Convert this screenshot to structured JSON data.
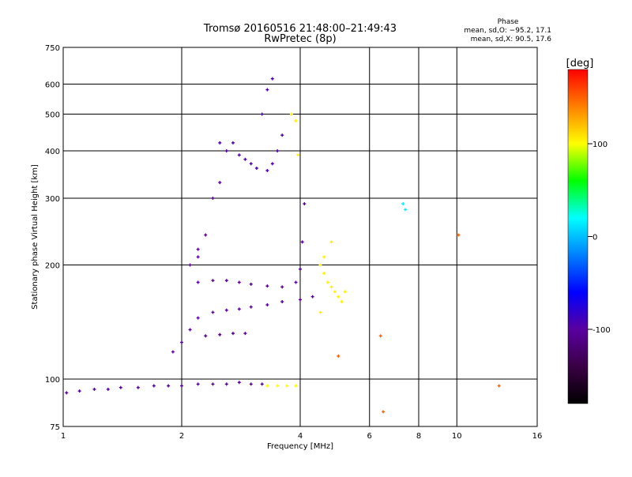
{
  "chart_data": {
    "type": "scatter",
    "title": "Tromsø 20160516 21:48:00–21:49:43",
    "subtitle": "RwPretec (8p)",
    "xlabel": "Frequency [MHz]",
    "ylabel": "Stationary phase Virtual Height [km]",
    "x_scale": "log",
    "y_scale": "log",
    "xlim": [
      1,
      16
    ],
    "ylim": [
      75,
      750
    ],
    "x_ticks": [
      1,
      2,
      4,
      6,
      8,
      10,
      16
    ],
    "y_ticks": [
      75,
      100,
      200,
      300,
      400,
      500,
      600,
      750
    ],
    "grid": true,
    "phase_header": "Phase",
    "phase_stats": [
      "mean, sd,O: −95.2, 17.1",
      "mean, sd,X:  90.5, 17.6"
    ],
    "colorbar": {
      "label": "[deg]",
      "ticks": [
        100,
        0,
        -100
      ],
      "range": [
        -180,
        180
      ],
      "colors": [
        "#000000",
        "#3a0044",
        "#5a00a0",
        "#0000ff",
        "#0080ff",
        "#00ffff",
        "#00ff00",
        "#ffff00",
        "#ff8000",
        "#ff0000"
      ]
    },
    "series": [
      {
        "values": [
          [
            1.02,
            92
          ],
          [
            1.1,
            93
          ],
          [
            1.2,
            94
          ],
          [
            1.3,
            94
          ],
          [
            1.4,
            95
          ],
          [
            1.55,
            95
          ],
          [
            1.7,
            96
          ],
          [
            1.85,
            96
          ],
          [
            2.0,
            96
          ],
          [
            2.2,
            97
          ],
          [
            2.4,
            97
          ],
          [
            2.6,
            97
          ],
          [
            2.8,
            98
          ],
          [
            3.0,
            97
          ],
          [
            3.2,
            97
          ]
        ],
        "phase": -105
      },
      {
        "values": [
          [
            3.3,
            96
          ],
          [
            3.5,
            96
          ],
          [
            3.7,
            96
          ],
          [
            3.9,
            96
          ]
        ],
        "phase": 100
      },
      {
        "values": [
          [
            1.9,
            118
          ],
          [
            2.0,
            125
          ],
          [
            2.1,
            135
          ],
          [
            2.2,
            145
          ],
          [
            2.4,
            150
          ],
          [
            2.6,
            152
          ],
          [
            2.8,
            153
          ],
          [
            3.0,
            155
          ],
          [
            3.3,
            157
          ],
          [
            3.6,
            160
          ],
          [
            4.0,
            162
          ],
          [
            4.3,
            165
          ]
        ],
        "phase": -100
      },
      {
        "values": [
          [
            2.2,
            180
          ],
          [
            2.4,
            182
          ],
          [
            2.6,
            182
          ],
          [
            2.8,
            180
          ],
          [
            3.0,
            178
          ],
          [
            3.3,
            176
          ],
          [
            3.6,
            175
          ],
          [
            3.9,
            180
          ],
          [
            4.0,
            195
          ],
          [
            4.05,
            230
          ],
          [
            4.1,
            290
          ]
        ],
        "phase": -105
      },
      {
        "values": [
          [
            2.3,
            130
          ],
          [
            2.5,
            131
          ],
          [
            2.7,
            132
          ],
          [
            2.9,
            132
          ]
        ],
        "phase": -110
      },
      {
        "values": [
          [
            2.5,
            420
          ],
          [
            2.6,
            400
          ],
          [
            2.7,
            420
          ],
          [
            2.8,
            390
          ],
          [
            2.9,
            380
          ],
          [
            3.0,
            370
          ],
          [
            3.1,
            360
          ],
          [
            3.3,
            355
          ],
          [
            3.4,
            370
          ],
          [
            3.5,
            400
          ],
          [
            3.6,
            440
          ],
          [
            3.2,
            500
          ],
          [
            3.3,
            580
          ],
          [
            3.4,
            620
          ]
        ],
        "phase": -95
      },
      {
        "values": [
          [
            2.1,
            200
          ],
          [
            2.2,
            220
          ],
          [
            2.3,
            240
          ],
          [
            2.4,
            300
          ],
          [
            2.5,
            330
          ],
          [
            2.2,
            210
          ]
        ],
        "phase": -100
      },
      {
        "values": [
          [
            3.8,
            500
          ],
          [
            3.9,
            480
          ],
          [
            3.95,
            390
          ],
          [
            4.5,
            200
          ],
          [
            4.6,
            190
          ],
          [
            4.7,
            180
          ],
          [
            4.8,
            175
          ],
          [
            4.9,
            170
          ],
          [
            5.0,
            165
          ],
          [
            5.1,
            160
          ],
          [
            4.6,
            210
          ],
          [
            4.8,
            230
          ],
          [
            5.2,
            170
          ],
          [
            4.5,
            150
          ]
        ],
        "phase": 105
      },
      {
        "values": [
          [
            7.3,
            290
          ],
          [
            7.4,
            280
          ]
        ],
        "phase": 15
      },
      {
        "values": [
          [
            6.5,
            82
          ],
          [
            12.8,
            96
          ],
          [
            10.1,
            240
          ],
          [
            5.0,
            115
          ],
          [
            6.4,
            130
          ]
        ],
        "phase": 150
      }
    ]
  }
}
